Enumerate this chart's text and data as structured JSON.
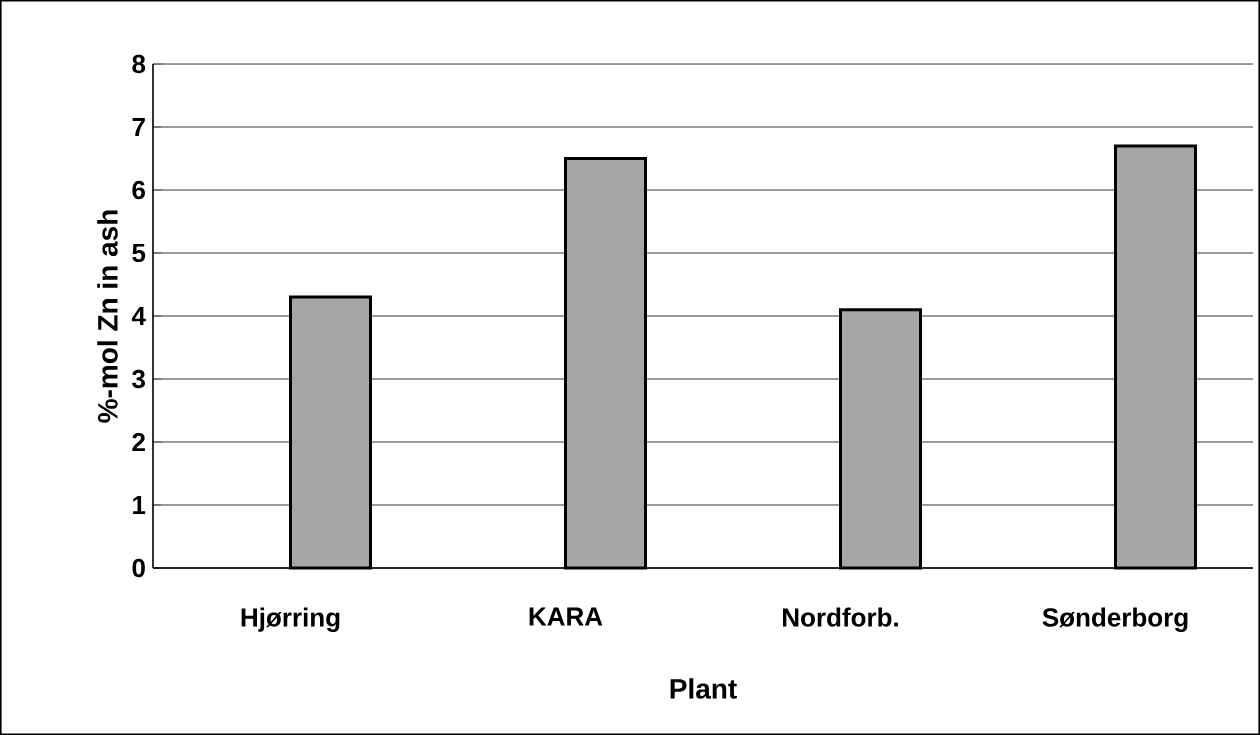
{
  "chart_data": {
    "type": "bar",
    "xlabel": "Plant",
    "ylabel": "%-mol Zn in ash",
    "categories": [
      "Hjørring",
      "KARA",
      "Nordforb.",
      "Sønderborg"
    ],
    "values": [
      4.3,
      6.5,
      4.1,
      6.7
    ],
    "color": "#a6a6a6",
    "ylim": [
      0,
      8
    ],
    "yticks": [
      0,
      1,
      2,
      3,
      4,
      5,
      6,
      7,
      8
    ],
    "grid": "y"
  }
}
